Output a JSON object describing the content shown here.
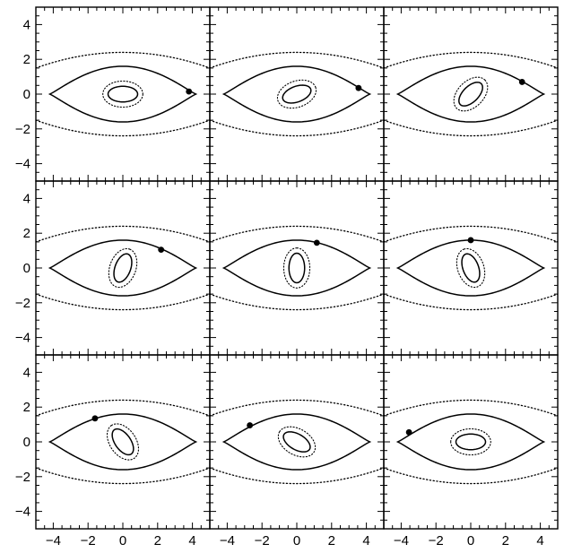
{
  "chart_data": {
    "type": "line",
    "layout": {
      "rows": 3,
      "cols": 3,
      "shared_axes": true
    },
    "title": "",
    "xlabel": "",
    "ylabel": "",
    "xlim": [
      -5,
      5
    ],
    "ylim": [
      -5,
      5
    ],
    "x_tick_labels": [
      "−4",
      "−2",
      "0",
      "2",
      "4"
    ],
    "y_tick_labels": [
      "4",
      "2",
      "0",
      "−2",
      "−4"
    ],
    "x_tick_values": [
      -4,
      -2,
      0,
      2,
      4
    ],
    "y_tick_values": [
      4,
      2,
      0,
      -2,
      -4
    ],
    "grid": false,
    "legend": "none",
    "colors": {
      "lines": "#000000",
      "background": "#ffffff"
    },
    "outer_critical_curve": {
      "style": "dotted",
      "x_half_width": 5.0,
      "y_at_center": 2.4,
      "y_at_edge": 1.5
    },
    "outer_caustic": {
      "style": "solid",
      "cusp_x": 4.2,
      "max_y": 1.6
    },
    "panels": [
      {
        "index": 1,
        "source_position": [
          3.8,
          0.15
        ],
        "inner_ellipse": {
          "semi_axes": [
            0.85,
            0.45
          ],
          "rotation_deg": 0
        }
      },
      {
        "index": 2,
        "source_position": [
          3.55,
          0.35
        ],
        "inner_ellipse": {
          "semi_axes": [
            0.85,
            0.45
          ],
          "rotation_deg": 20
        }
      },
      {
        "index": 3,
        "source_position": [
          2.95,
          0.7
        ],
        "inner_ellipse": {
          "semi_axes": [
            0.85,
            0.45
          ],
          "rotation_deg": 45
        }
      },
      {
        "index": 4,
        "source_position": [
          2.2,
          1.05
        ],
        "inner_ellipse": {
          "semi_axes": [
            0.85,
            0.45
          ],
          "rotation_deg": 70
        }
      },
      {
        "index": 5,
        "source_position": [
          1.15,
          1.45
        ],
        "inner_ellipse": {
          "semi_axes": [
            0.85,
            0.45
          ],
          "rotation_deg": 90
        }
      },
      {
        "index": 6,
        "source_position": [
          0.0,
          1.6
        ],
        "inner_ellipse": {
          "semi_axes": [
            0.85,
            0.45
          ],
          "rotation_deg": 110
        }
      },
      {
        "index": 7,
        "source_position": [
          -1.6,
          1.35
        ],
        "inner_ellipse": {
          "semi_axes": [
            0.85,
            0.45
          ],
          "rotation_deg": 125
        }
      },
      {
        "index": 8,
        "source_position": [
          -2.7,
          0.95
        ],
        "inner_ellipse": {
          "semi_axes": [
            0.85,
            0.45
          ],
          "rotation_deg": 150
        }
      },
      {
        "index": 9,
        "source_position": [
          -3.55,
          0.55
        ],
        "inner_ellipse": {
          "semi_axes": [
            0.85,
            0.45
          ],
          "rotation_deg": 180
        }
      }
    ]
  }
}
